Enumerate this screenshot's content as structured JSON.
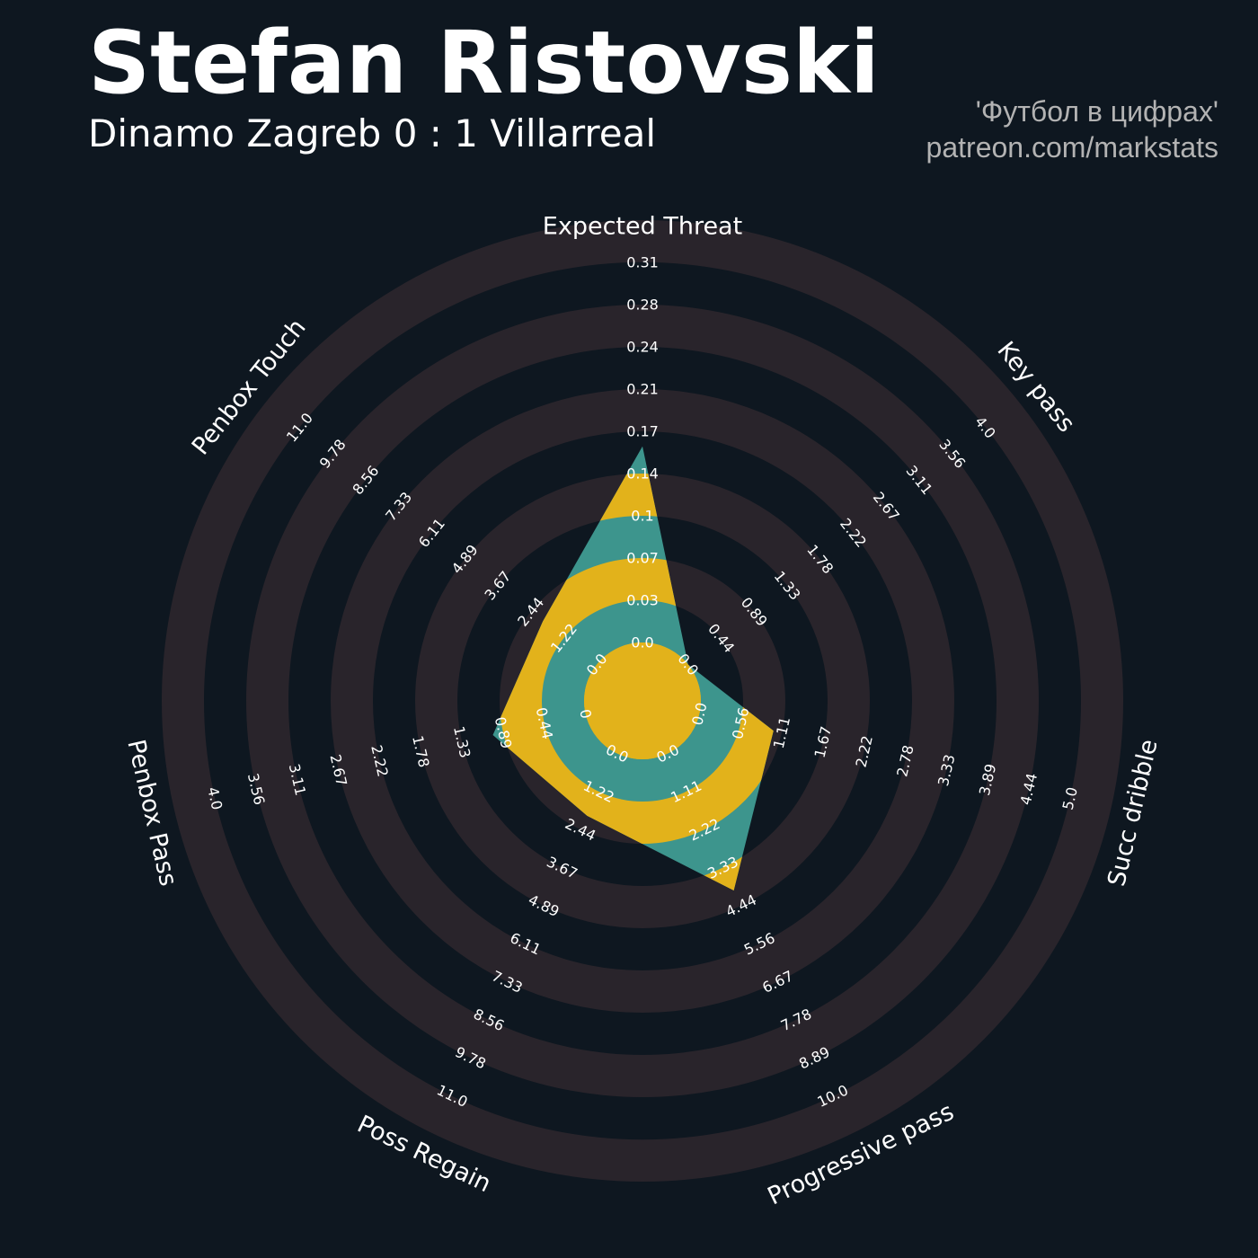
{
  "header": {
    "title": "Stefan Ristovski",
    "subtitle": "Dinamo Zagreb 0 : 1 Villarreal",
    "credit_line1": "'Футбол в цифрах'",
    "credit_line2": "patreon.com/markstats"
  },
  "chart_data": {
    "type": "radar",
    "params": [
      {
        "name": "Expected Threat",
        "value": 0.16,
        "min": 0.0,
        "max": 0.31,
        "ticks": [
          "0.0",
          "0.03",
          "0.07",
          "0.1",
          "0.14",
          "0.17",
          "0.21",
          "0.24",
          "0.28",
          "0.31"
        ]
      },
      {
        "name": "Key pass",
        "value": 0.0,
        "min": 0.0,
        "max": 4.0,
        "ticks": [
          "0.0",
          "0.44",
          "0.89",
          "1.33",
          "1.78",
          "2.22",
          "2.67",
          "3.11",
          "3.56",
          "4.0"
        ]
      },
      {
        "name": "Succ dribble",
        "value": 1.0,
        "min": 0.0,
        "max": 5.0,
        "ticks": [
          "0.0",
          "0.56",
          "1.11",
          "1.67",
          "2.22",
          "2.78",
          "3.33",
          "3.89",
          "4.44",
          "5.0"
        ]
      },
      {
        "name": "Progressive pass",
        "value": 4.0,
        "min": 0.0,
        "max": 10.0,
        "ticks": [
          "0.0",
          "1.11",
          "2.22",
          "3.33",
          "4.44",
          "5.56",
          "6.67",
          "7.78",
          "8.89",
          "10.0"
        ]
      },
      {
        "name": "Poss Regain",
        "value": 2.0,
        "min": 0.0,
        "max": 11.0,
        "ticks": [
          "0.0",
          "1.22",
          "2.44",
          "3.67",
          "4.89",
          "6.11",
          "7.33",
          "8.56",
          "9.78",
          "11.0"
        ]
      },
      {
        "name": "Penbox Pass",
        "value": 1.0,
        "min": 0.0,
        "max": 4.0,
        "ticks": [
          "0",
          "0.44",
          "0.89",
          "1.33",
          "1.78",
          "2.22",
          "2.67",
          "3.11",
          "3.56",
          "4.0"
        ]
      },
      {
        "name": "Penbox Touch",
        "value": 2.0,
        "min": 0.0,
        "max": 11.0,
        "ticks": [
          "0.0",
          "1.22",
          "2.44",
          "3.67",
          "4.89",
          "6.11",
          "7.33",
          "8.56",
          "9.78",
          "11.0"
        ]
      }
    ],
    "colors": {
      "background": "#0e1720",
      "ring_band": "#29242b",
      "player_fill_a": "#e2b21b",
      "player_fill_b": "#3d958d",
      "text": "#ffffff",
      "credit": "#b3b3b3"
    }
  }
}
